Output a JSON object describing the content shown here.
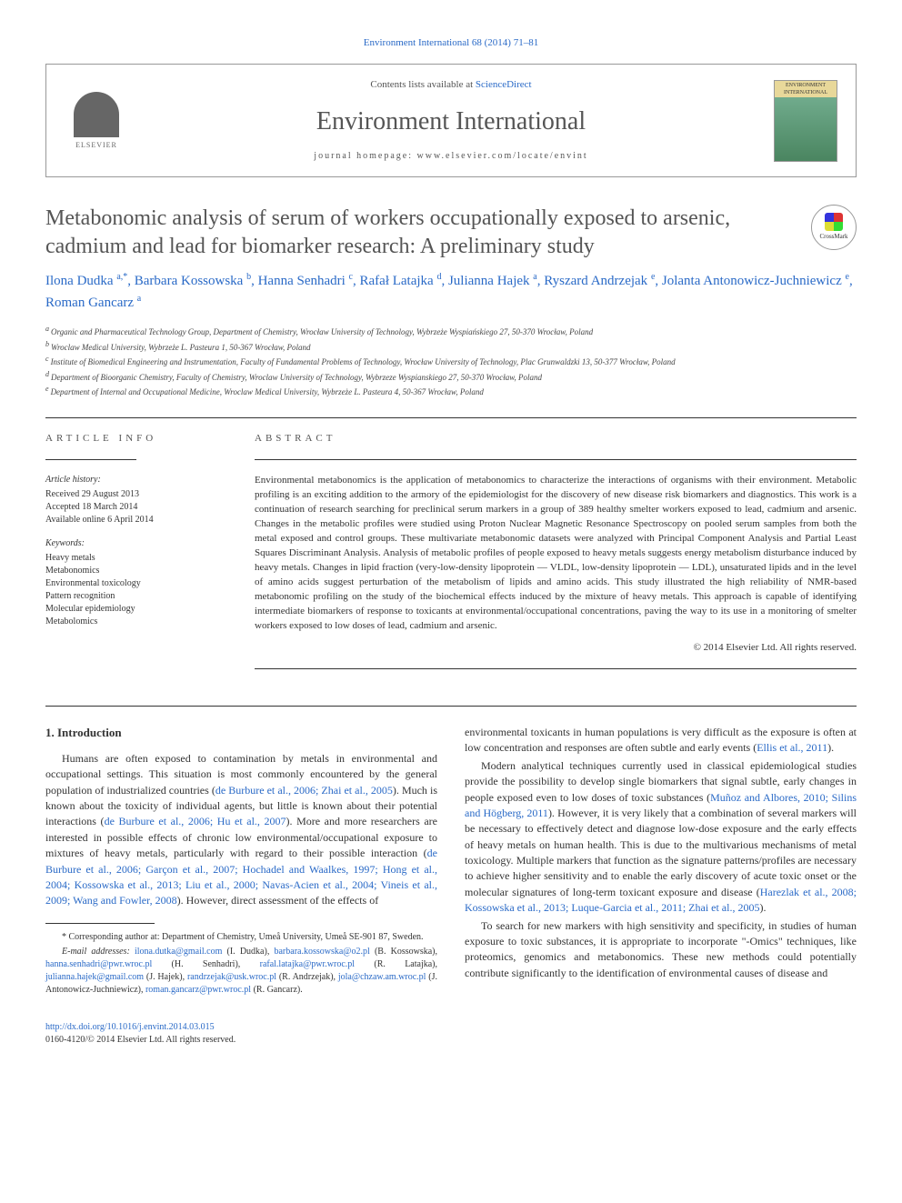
{
  "top_link": "Environment International 68 (2014) 71–81",
  "header": {
    "contents_prefix": "Contents lists available at ",
    "sd": "ScienceDirect",
    "journal": "Environment International",
    "homepage_label": "journal homepage: ",
    "homepage": "www.elsevier.com/locate/envint",
    "elsevier": "ELSEVIER",
    "cover_text": "ENVIRONMENT INTERNATIONAL"
  },
  "title": "Metabonomic analysis of serum of workers occupationally exposed to arsenic, cadmium and lead for biomarker research: A preliminary study",
  "crossmark": "CrossMark",
  "authors_html": "Ilona Dudka <span class='sup'>a,*</span>, Barbara Kossowska <span class='sup'>b</span>, Hanna Senhadri <span class='sup'>c</span>, Rafał Latajka <span class='sup'>d</span>, Julianna Hajek <span class='sup'>a</span>, Ryszard Andrzejak <span class='sup'>e</span>, Jolanta Antonowicz-Juchniewicz <span class='sup'>e</span>, Roman Gancarz <span class='sup'>a</span>",
  "affiliations": [
    {
      "sup": "a",
      "text": "Organic and Pharmaceutical Technology Group, Department of Chemistry, Wrocław University of Technology, Wybrzeże Wyspiańskiego 27, 50-370 Wrocław, Poland"
    },
    {
      "sup": "b",
      "text": "Wroclaw Medical University, Wybrzeże L. Pasteura 1, 50-367 Wrocław, Poland"
    },
    {
      "sup": "c",
      "text": "Institute of Biomedical Engineering and Instrumentation, Faculty of Fundamental Problems of Technology, Wrocław University of Technology, Plac Grunwaldzki 13, 50-377 Wrocław, Poland"
    },
    {
      "sup": "d",
      "text": "Department of Bioorganic Chemistry, Faculty of Chemistry, Wroclaw University of Technology, Wybrzeze Wyspianskiego 27, 50-370 Wrocław, Poland"
    },
    {
      "sup": "e",
      "text": "Department of Internal and Occupational Medicine, Wroclaw Medical University, Wybrzeże L. Pasteura 4, 50-367 Wrocław, Poland"
    }
  ],
  "article_info": {
    "heading": "ARTICLE INFO",
    "history_label": "Article history:",
    "history": [
      "Received 29 August 2013",
      "Accepted 18 March 2014",
      "Available online 6 April 2014"
    ],
    "keywords_label": "Keywords:",
    "keywords": [
      "Heavy metals",
      "Metabonomics",
      "Environmental toxicology",
      "Pattern recognition",
      "Molecular epidemiology",
      "Metabolomics"
    ]
  },
  "abstract": {
    "heading": "ABSTRACT",
    "text": "Environmental metabonomics is the application of metabonomics to characterize the interactions of organisms with their environment. Metabolic profiling is an exciting addition to the armory of the epidemiologist for the discovery of new disease risk biomarkers and diagnostics. This work is a continuation of research searching for preclinical serum markers in a group of 389 healthy smelter workers exposed to lead, cadmium and arsenic. Changes in the metabolic profiles were studied using Proton Nuclear Magnetic Resonance Spectroscopy on pooled serum samples from both the metal exposed and control groups. These multivariate metabonomic datasets were analyzed with Principal Component Analysis and Partial Least Squares Discriminant Analysis. Analysis of metabolic profiles of people exposed to heavy metals suggests energy metabolism disturbance induced by heavy metals. Changes in lipid fraction (very-low-density lipoprotein — VLDL, low-density lipoprotein — LDL), unsaturated lipids and in the level of amino acids suggest perturbation of the metabolism of lipids and amino acids. This study illustrated the high reliability of NMR-based metabonomic profiling on the study of the biochemical effects induced by the mixture of heavy metals. This approach is capable of identifying intermediate biomarkers of response to toxicants at environmental/occupational concentrations, paving the way to its use in a monitoring of smelter workers exposed to low doses of lead, cadmium and arsenic.",
    "copyright": "© 2014 Elsevier Ltd. All rights reserved."
  },
  "section1_heading": "1. Introduction",
  "col1": {
    "p1_pre": "Humans are often exposed to contamination by metals in environmental and occupational settings. This situation is most commonly encountered by the general population of industrialized countries (",
    "p1_cite1": "de Burbure et al., 2006; Zhai et al., 2005",
    "p1_mid1": "). Much is known about the toxicity of individual agents, but little is known about their potential interactions (",
    "p1_cite2": "de Burbure et al., 2006; Hu et al., 2007",
    "p1_mid2": "). More and more researchers are interested in possible effects of chronic low environmental/occupational exposure to mixtures of heavy metals, particularly with regard to their possible interaction (",
    "p1_cite3": "de Burbure et al., 2006; Garçon et al., 2007; Hochadel and Waalkes, 1997; Hong et al., 2004; Kossowska et al., 2013; Liu et al., 2000; Navas-Acien et al., 2004; Vineis et al., 2009; Wang and Fowler, 2008",
    "p1_end": "). However, direct assessment of the effects of"
  },
  "corresponding": {
    "star": "* Corresponding author at: Department of Chemistry, Umeå University, Umeå SE-901 87, Sweden.",
    "email_label": "E-mail addresses: ",
    "emails_html": "<span class='email'>ilona.dutka@gmail.com</span> (I. Dudka), <span class='email'>barbara.kossowska@o2.pl</span> (B. Kossowska), <span class='email'>hanna.senhadri@pwr.wroc.pl</span> (H. Senhadri), <span class='email'>rafal.latajka@pwr.wroc.pl</span> (R. Latajka), <span class='email'>julianna.hajek@gmail.com</span> (J. Hajek), <span class='email'>randrzejak@usk.wroc.pl</span> (R. Andrzejak), <span class='email'>jola@chzaw.am.wroc.pl</span> (J. Antonowicz-Juchniewicz), <span class='email'>roman.gancarz@pwr.wroc.pl</span> (R. Gancarz)."
  },
  "col2": {
    "p1_pre": "environmental toxicants in human populations is very difficult as the exposure is often at low concentration and responses are often subtle and early events (",
    "p1_cite1": "Ellis et al., 2011",
    "p1_end1": ").",
    "p2_pre": "Modern analytical techniques currently used in classical epidemiological studies provide the possibility to develop single biomarkers that signal subtle, early changes in people exposed even to low doses of toxic substances (",
    "p2_cite1": "Muñoz and Albores, 2010; Silins and Högberg, 2011",
    "p2_mid": "). However, it is very likely that a combination of several markers will be necessary to effectively detect and diagnose low-dose exposure and the early effects of heavy metals on human health. This is due to the multivarious mechanisms of metal toxicology. Multiple markers that function as the signature patterns/profiles are necessary to achieve higher sensitivity and to enable the early discovery of acute toxic onset or the molecular signatures of long-term toxicant exposure and disease (",
    "p2_cite2": "Harezlak et al., 2008; Kossowska et al., 2013; Luque-Garcia et al., 2011; Zhai et al., 2005",
    "p2_end": ").",
    "p3": "To search for new markers with high sensitivity and specificity, in studies of human exposure to toxic substances, it is appropriate to incorporate \"-Omics\" techniques, like proteomics, genomics and metabonomics. These new methods could potentially contribute significantly to the identification of environmental causes of disease and"
  },
  "bottom": {
    "doi": "http://dx.doi.org/10.1016/j.envint.2014.03.015",
    "issn": "0160-4120/© 2014 Elsevier Ltd. All rights reserved."
  }
}
